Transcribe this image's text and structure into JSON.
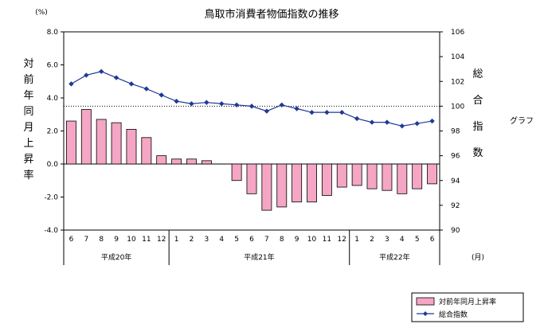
{
  "chart_data": {
    "type": "bar+line",
    "title": "鳥取市消費者物価指数の推移",
    "left_axis": {
      "unit": "(%)",
      "label": "対前年同月上昇率",
      "ylim": [
        -4.0,
        8.0
      ],
      "ticks": [
        "8.0",
        "6.0",
        "4.0",
        "2.0",
        "0.0",
        "-2.0",
        "-4.0"
      ]
    },
    "right_axis": {
      "label": "総合指数",
      "ylim": [
        90,
        106
      ],
      "ticks": [
        "106",
        "104",
        "102",
        "100",
        "98",
        "96",
        "94",
        "92",
        "90"
      ]
    },
    "x_unit": "(月)",
    "categories": [
      "6",
      "7",
      "8",
      "9",
      "10",
      "11",
      "12",
      "1",
      "2",
      "3",
      "4",
      "5",
      "6",
      "7",
      "8",
      "9",
      "10",
      "11",
      "12",
      "1",
      "2",
      "3",
      "4",
      "5",
      "6"
    ],
    "year_groups": [
      {
        "label": "平成20年",
        "count": 7
      },
      {
        "label": "平成21年",
        "count": 12
      },
      {
        "label": "平成22年",
        "count": 6
      }
    ],
    "series": [
      {
        "name": "対前年同月上昇率",
        "type": "bar",
        "axis": "left",
        "color": "#f4a6c4",
        "values": [
          2.6,
          3.3,
          2.7,
          2.5,
          2.1,
          1.6,
          0.5,
          0.3,
          0.3,
          0.2,
          0.0,
          -1.0,
          -1.8,
          -2.8,
          -2.6,
          -2.3,
          -2.3,
          -1.9,
          -1.4,
          -1.3,
          -1.5,
          -1.6,
          -1.8,
          -1.5,
          -1.2
        ]
      },
      {
        "name": "総合指数",
        "type": "line",
        "axis": "right",
        "color": "#1f3a93",
        "values": [
          101.8,
          102.5,
          102.8,
          102.3,
          101.8,
          101.4,
          100.9,
          100.4,
          100.2,
          100.3,
          100.2,
          100.1,
          100.0,
          99.6,
          100.1,
          99.8,
          99.5,
          99.5,
          99.5,
          99.0,
          98.7,
          98.7,
          98.4,
          98.6,
          98.8
        ]
      }
    ],
    "reference_line": {
      "axis": "right",
      "value": 100,
      "style": "dotted"
    },
    "side_note": "グラフ",
    "legend_position": "bottom-right",
    "grid": false
  }
}
